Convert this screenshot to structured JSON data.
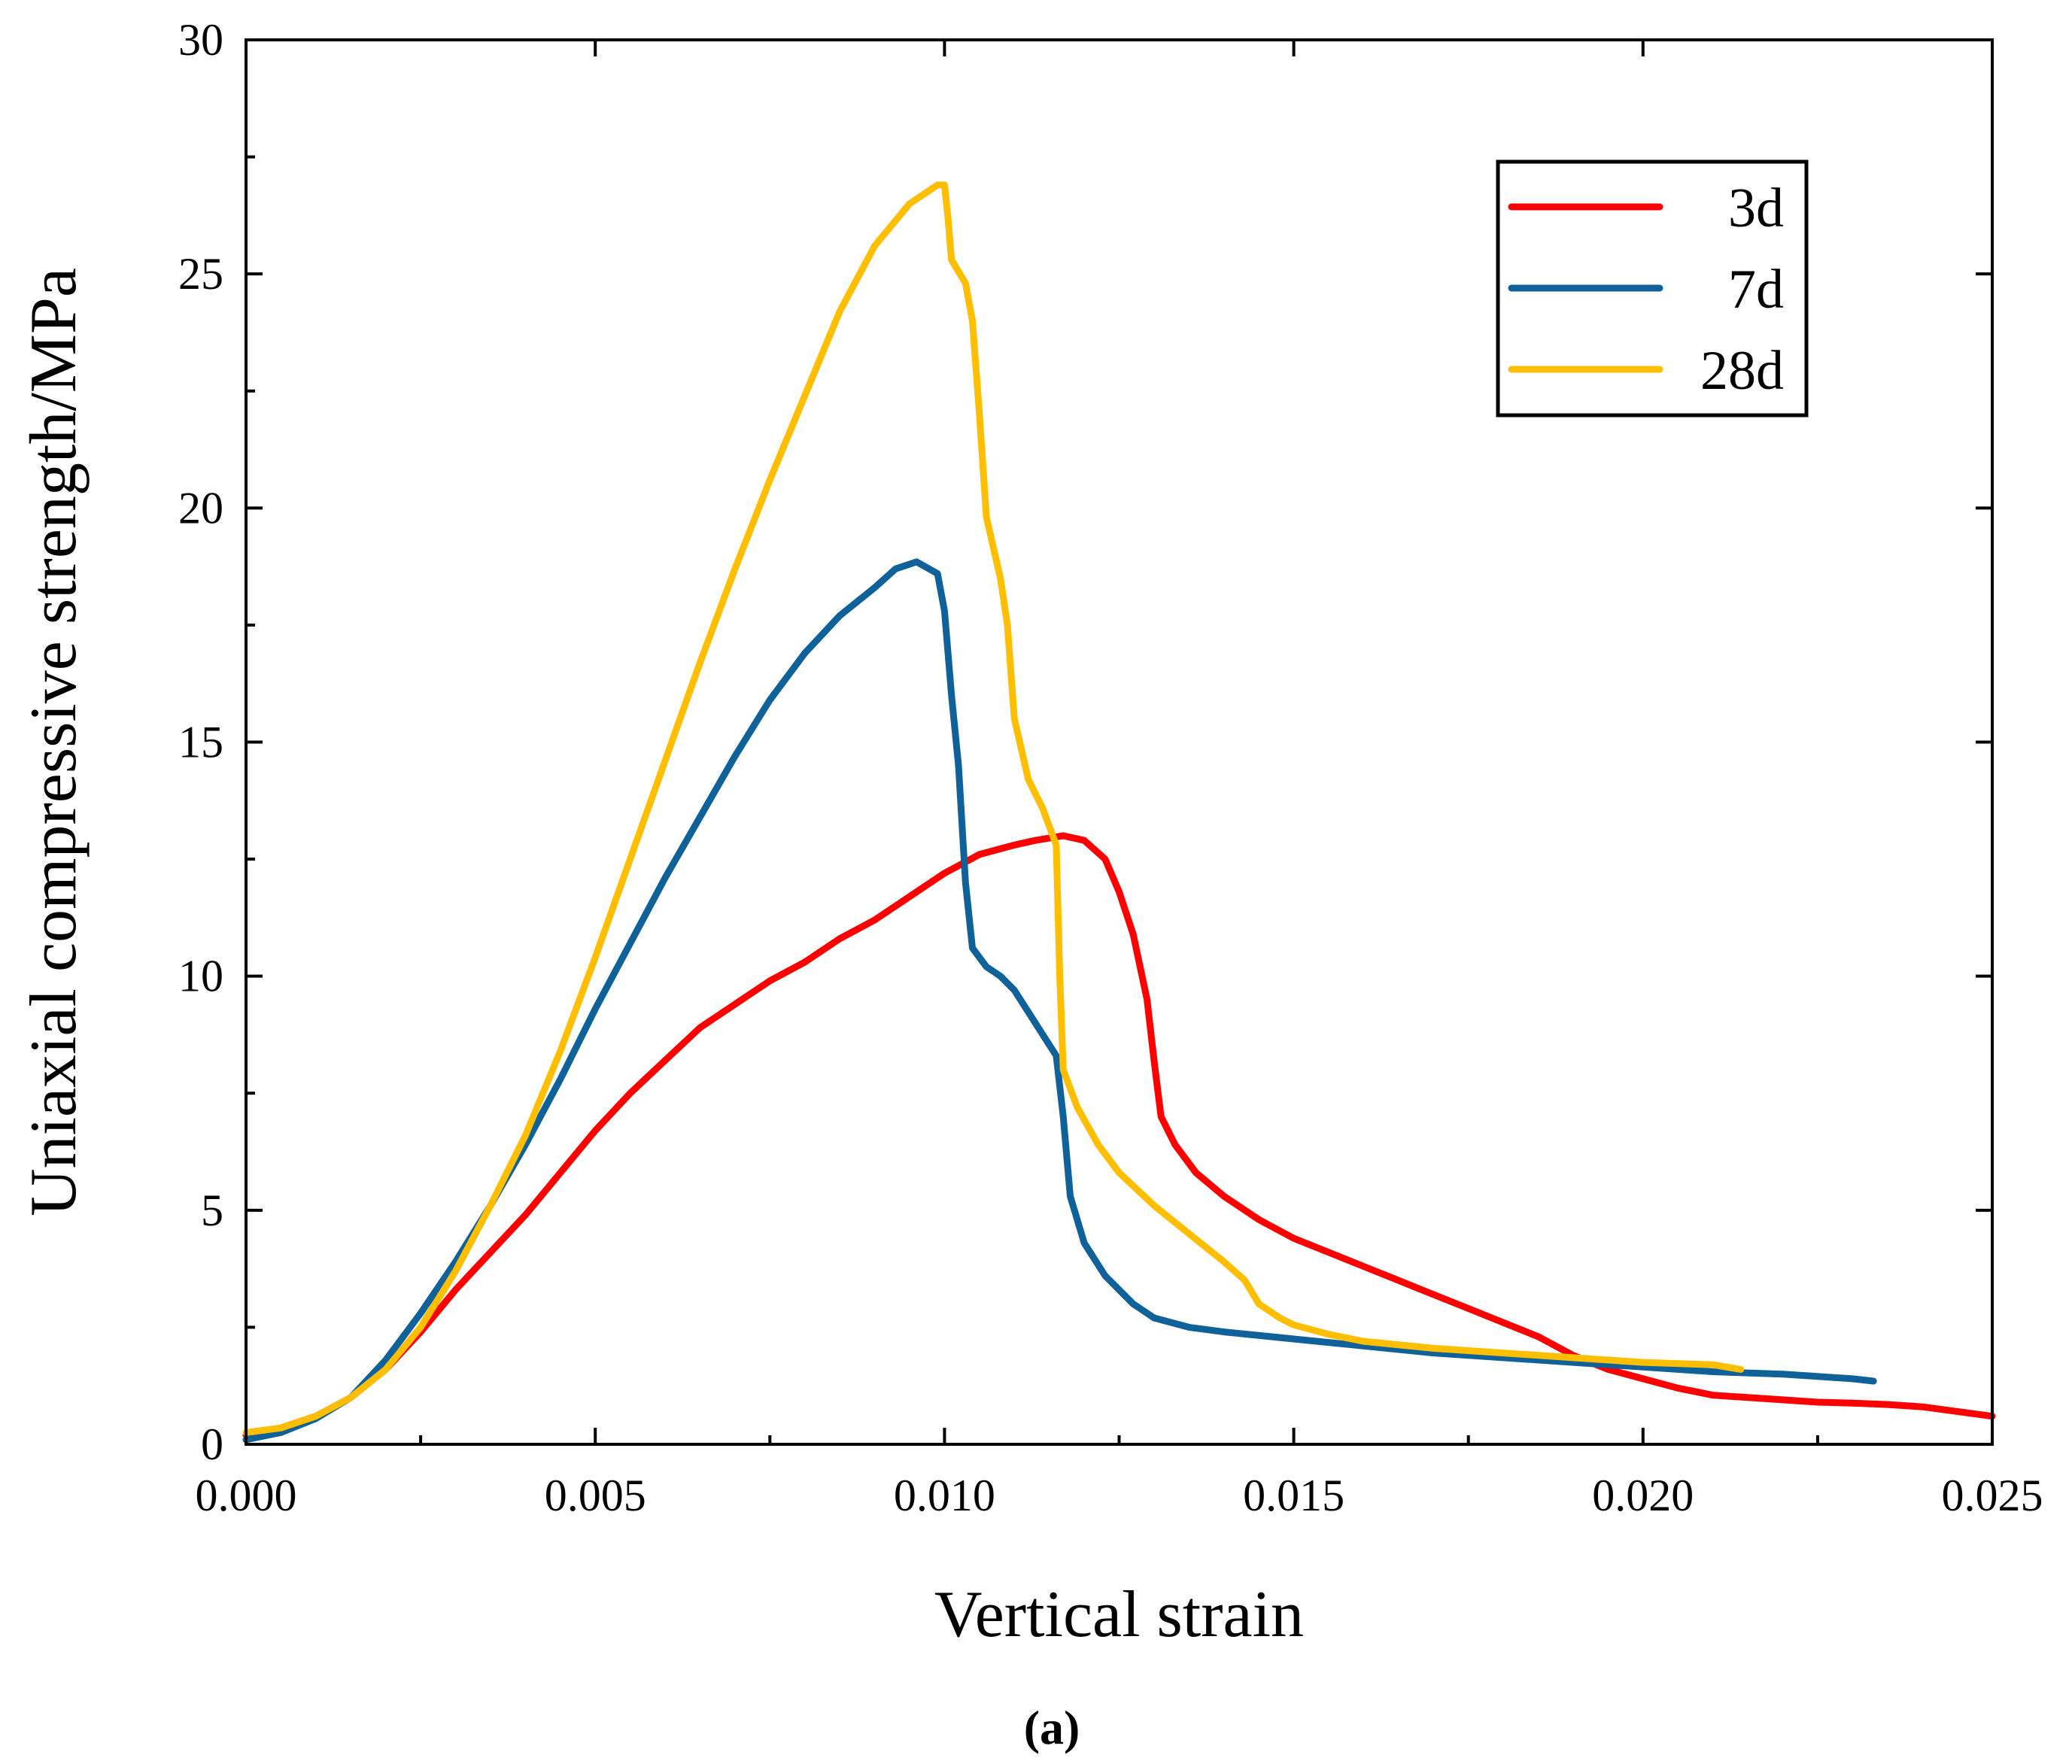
{
  "chart_data": {
    "type": "line",
    "title": "",
    "xlabel": "Vertical strain",
    "ylabel": "Uniaxial compressive strength/MPa",
    "xlim": [
      0,
      0.025
    ],
    "ylim": [
      0,
      30
    ],
    "xticks": [
      "0.000",
      "0.005",
      "0.010",
      "0.015",
      "0.020",
      "0.025"
    ],
    "xtick_values": [
      0,
      0.005,
      0.01,
      0.015,
      0.02,
      0.025
    ],
    "yticks": [
      "0",
      "5",
      "10",
      "15",
      "20",
      "25",
      "30"
    ],
    "ytick_values": [
      0,
      5,
      10,
      15,
      20,
      25,
      30
    ],
    "legend_position": "top-right",
    "grid": false,
    "caption": "(a)",
    "series": [
      {
        "name": "3d",
        "color": "#ff0000",
        "points": [
          [
            0,
            0.2
          ],
          [
            0.0005,
            0.35
          ],
          [
            0.001,
            0.6
          ],
          [
            0.0015,
            1.0
          ],
          [
            0.002,
            1.6
          ],
          [
            0.0025,
            2.4
          ],
          [
            0.003,
            3.3
          ],
          [
            0.0035,
            4.1
          ],
          [
            0.004,
            4.9
          ],
          [
            0.0045,
            5.8
          ],
          [
            0.005,
            6.7
          ],
          [
            0.0055,
            7.5
          ],
          [
            0.006,
            8.2
          ],
          [
            0.0065,
            8.9
          ],
          [
            0.007,
            9.4
          ],
          [
            0.0075,
            9.9
          ],
          [
            0.008,
            10.3
          ],
          [
            0.0085,
            10.8
          ],
          [
            0.009,
            11.2
          ],
          [
            0.0095,
            11.7
          ],
          [
            0.01,
            12.2
          ],
          [
            0.0105,
            12.6
          ],
          [
            0.011,
            12.8
          ],
          [
            0.0113,
            12.9
          ],
          [
            0.0117,
            13.0
          ],
          [
            0.012,
            12.9
          ],
          [
            0.0123,
            12.5
          ],
          [
            0.0125,
            11.8
          ],
          [
            0.0127,
            10.9
          ],
          [
            0.0129,
            9.5
          ],
          [
            0.013,
            8.2
          ],
          [
            0.0131,
            7.0
          ],
          [
            0.0133,
            6.4
          ],
          [
            0.0136,
            5.8
          ],
          [
            0.014,
            5.3
          ],
          [
            0.0145,
            4.8
          ],
          [
            0.015,
            4.4
          ],
          [
            0.0155,
            4.1
          ],
          [
            0.016,
            3.8
          ],
          [
            0.0165,
            3.5
          ],
          [
            0.017,
            3.2
          ],
          [
            0.0175,
            2.9
          ],
          [
            0.018,
            2.6
          ],
          [
            0.0185,
            2.3
          ],
          [
            0.019,
            1.9
          ],
          [
            0.0195,
            1.6
          ],
          [
            0.02,
            1.4
          ],
          [
            0.0205,
            1.2
          ],
          [
            0.021,
            1.05
          ],
          [
            0.0215,
            1.0
          ],
          [
            0.022,
            0.95
          ],
          [
            0.0225,
            0.9
          ],
          [
            0.023,
            0.88
          ],
          [
            0.0235,
            0.85
          ],
          [
            0.024,
            0.8
          ],
          [
            0.0245,
            0.7
          ],
          [
            0.025,
            0.6
          ]
        ]
      },
      {
        "name": "7d",
        "color": "#0e6199",
        "points": [
          [
            0,
            0.1
          ],
          [
            0.0005,
            0.25
          ],
          [
            0.001,
            0.55
          ],
          [
            0.0015,
            1.0
          ],
          [
            0.002,
            1.8
          ],
          [
            0.0025,
            2.8
          ],
          [
            0.003,
            3.9
          ],
          [
            0.0035,
            5.1
          ],
          [
            0.004,
            6.4
          ],
          [
            0.0045,
            7.8
          ],
          [
            0.005,
            9.3
          ],
          [
            0.0055,
            10.7
          ],
          [
            0.006,
            12.1
          ],
          [
            0.0065,
            13.4
          ],
          [
            0.007,
            14.7
          ],
          [
            0.0075,
            15.9
          ],
          [
            0.008,
            16.9
          ],
          [
            0.0085,
            17.7
          ],
          [
            0.009,
            18.3
          ],
          [
            0.0093,
            18.7
          ],
          [
            0.0096,
            18.85
          ],
          [
            0.0099,
            18.6
          ],
          [
            0.01,
            17.8
          ],
          [
            0.0101,
            16.0
          ],
          [
            0.0102,
            14.5
          ],
          [
            0.0103,
            12.0
          ],
          [
            0.0104,
            10.6
          ],
          [
            0.0106,
            10.2
          ],
          [
            0.0108,
            10.0
          ],
          [
            0.011,
            9.7
          ],
          [
            0.0113,
            9.0
          ],
          [
            0.0116,
            8.3
          ],
          [
            0.0117,
            7.0
          ],
          [
            0.0118,
            5.3
          ],
          [
            0.012,
            4.3
          ],
          [
            0.0123,
            3.6
          ],
          [
            0.0127,
            3.0
          ],
          [
            0.013,
            2.7
          ],
          [
            0.0135,
            2.5
          ],
          [
            0.014,
            2.4
          ],
          [
            0.015,
            2.25
          ],
          [
            0.016,
            2.1
          ],
          [
            0.017,
            1.95
          ],
          [
            0.018,
            1.85
          ],
          [
            0.019,
            1.75
          ],
          [
            0.02,
            1.65
          ],
          [
            0.021,
            1.55
          ],
          [
            0.022,
            1.5
          ],
          [
            0.023,
            1.4
          ],
          [
            0.0233,
            1.35
          ]
        ]
      },
      {
        "name": "28d",
        "color": "#ffbf00",
        "points": [
          [
            0,
            0.25
          ],
          [
            0.0005,
            0.35
          ],
          [
            0.001,
            0.6
          ],
          [
            0.0015,
            1.0
          ],
          [
            0.002,
            1.6
          ],
          [
            0.0025,
            2.5
          ],
          [
            0.003,
            3.7
          ],
          [
            0.0035,
            5.1
          ],
          [
            0.004,
            6.6
          ],
          [
            0.0045,
            8.4
          ],
          [
            0.005,
            10.4
          ],
          [
            0.0055,
            12.5
          ],
          [
            0.006,
            14.6
          ],
          [
            0.0065,
            16.7
          ],
          [
            0.007,
            18.7
          ],
          [
            0.0075,
            20.6
          ],
          [
            0.008,
            22.4
          ],
          [
            0.0085,
            24.2
          ],
          [
            0.009,
            25.6
          ],
          [
            0.0095,
            26.5
          ],
          [
            0.0099,
            26.9
          ],
          [
            0.01,
            26.9
          ],
          [
            0.01005,
            26.2
          ],
          [
            0.0101,
            25.3
          ],
          [
            0.0103,
            24.8
          ],
          [
            0.0104,
            24.0
          ],
          [
            0.0105,
            22.0
          ],
          [
            0.0106,
            19.8
          ],
          [
            0.0108,
            18.5
          ],
          [
            0.0109,
            17.5
          ],
          [
            0.011,
            15.5
          ],
          [
            0.0112,
            14.2
          ],
          [
            0.0114,
            13.6
          ],
          [
            0.0116,
            12.8
          ],
          [
            0.01165,
            10.0
          ],
          [
            0.0117,
            8.0
          ],
          [
            0.0119,
            7.2
          ],
          [
            0.0122,
            6.4
          ],
          [
            0.0125,
            5.8
          ],
          [
            0.013,
            5.1
          ],
          [
            0.0135,
            4.5
          ],
          [
            0.014,
            3.9
          ],
          [
            0.0143,
            3.5
          ],
          [
            0.0145,
            3.0
          ],
          [
            0.0148,
            2.7
          ],
          [
            0.015,
            2.55
          ],
          [
            0.0155,
            2.35
          ],
          [
            0.016,
            2.2
          ],
          [
            0.017,
            2.05
          ],
          [
            0.018,
            1.95
          ],
          [
            0.019,
            1.85
          ],
          [
            0.02,
            1.75
          ],
          [
            0.021,
            1.7
          ],
          [
            0.0214,
            1.6
          ]
        ]
      }
    ]
  }
}
